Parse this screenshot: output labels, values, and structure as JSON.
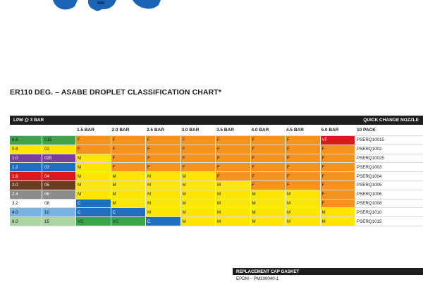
{
  "colors": {
    "F": "#f6921e",
    "M": "#ffe600",
    "C": "#1f6ec0",
    "VC": "#38a649",
    "VF": "#d71920",
    "nozzle_blue": "#1b63b5"
  },
  "title": "ER110 DEG. – ASABE DROPLET CLASSIFICATION CHART*",
  "bar": {
    "left": "LPM @ 3 BAR",
    "right": "QUICK CHANGE NOZZLE"
  },
  "headers": [
    "1.5 BAR",
    "2.0 BAR",
    "2.5 BAR",
    "3.0 BAR",
    "3.5 BAR",
    "4.0 BAR",
    "4.5 BAR",
    "5.0 BAR",
    "10 PACK"
  ],
  "rows": [
    {
      "lpm": "0.6",
      "size": "015",
      "size_color": "#38a649",
      "text_color": "#111111",
      "classes": [
        "F",
        "F",
        "F",
        "F",
        "F",
        "F",
        "F",
        "VF"
      ],
      "part": "PSERQ10015"
    },
    {
      "lpm": "0.8",
      "size": "02",
      "size_color": "#ffe600",
      "text_color": "#111111",
      "classes": [
        "F",
        "F",
        "F",
        "F",
        "F",
        "F",
        "F",
        "F"
      ],
      "part": "PSERQ1002"
    },
    {
      "lpm": "1.0",
      "size": "025",
      "size_color": "#7a3f98",
      "text_color": "#ffffff",
      "classes": [
        "M",
        "F",
        "F",
        "F",
        "F",
        "F",
        "F",
        "F"
      ],
      "part": "PSERQ10025"
    },
    {
      "lpm": "1.2",
      "size": "03",
      "size_color": "#1f6ec0",
      "text_color": "#ffffff",
      "classes": [
        "M",
        "F",
        "F",
        "F",
        "F",
        "F",
        "F",
        "F"
      ],
      "part": "PSERQ1003"
    },
    {
      "lpm": "1.6",
      "size": "04",
      "size_color": "#d71920",
      "text_color": "#ffffff",
      "classes": [
        "M",
        "M",
        "M",
        "M",
        "F",
        "F",
        "F",
        "F"
      ],
      "part": "PSERQ1004"
    },
    {
      "lpm": "2.0",
      "size": "05",
      "size_color": "#6b3d1e",
      "text_color": "#ffffff",
      "classes": [
        "M",
        "M",
        "M",
        "M",
        "M",
        "F",
        "F",
        "F"
      ],
      "part": "PSERQ1005"
    },
    {
      "lpm": "2.4",
      "size": "06",
      "size_color": "#8c8c8c",
      "text_color": "#ffffff",
      "classes": [
        "M",
        "M",
        "M",
        "M",
        "M",
        "M",
        "M",
        "F"
      ],
      "part": "PSERQ1006"
    },
    {
      "lpm": "3.2",
      "size": "08",
      "size_color": "#ffffff",
      "text_color": "#111111",
      "classes": [
        "C",
        "M",
        "M",
        "M",
        "M",
        "M",
        "M",
        "F"
      ],
      "part": "PSERQ1008"
    },
    {
      "lpm": "4.0",
      "size": "10",
      "size_color": "#7ab3e2",
      "text_color": "#111111",
      "classes": [
        "C",
        "C",
        "M",
        "M",
        "M",
        "M",
        "M",
        "M"
      ],
      "part": "PSERQ1010"
    },
    {
      "lpm": "6.0",
      "size": "15",
      "size_color": "#a8d5a0",
      "text_color": "#111111",
      "classes": [
        "VC",
        "VC",
        "C",
        "M",
        "M",
        "M",
        "M",
        "M"
      ],
      "part": "PSERQ1015"
    }
  ],
  "gasket": {
    "title": "REPLACEMENT CAP GASKET",
    "text": "EPDM – PM200040-1"
  }
}
